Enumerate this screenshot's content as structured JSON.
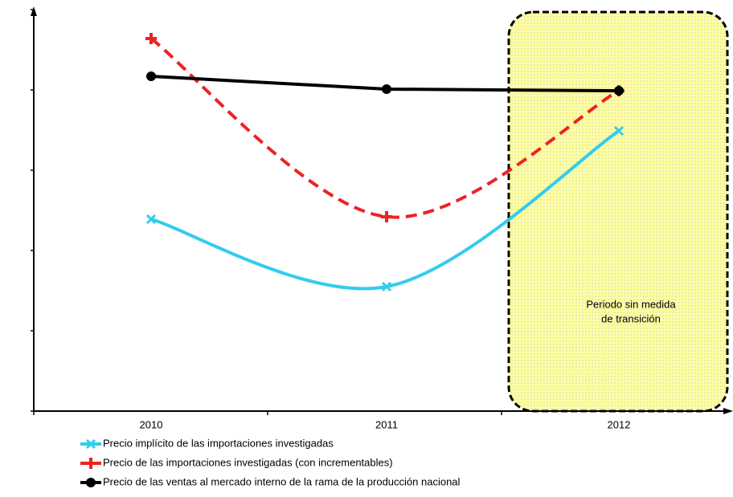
{
  "chart_data": {
    "type": "line",
    "categories": [
      "2010",
      "2011",
      "2012"
    ],
    "series": [
      {
        "name": "Precio implícito de las importaciones investigadas",
        "color": "#33ccee",
        "dash": false,
        "values": [
          47.8,
          31,
          69.8
        ]
      },
      {
        "name": "Precio de las importaciones investigadas (con incrementables)",
        "color": "#ee2222",
        "dash": true,
        "values": [
          92.8,
          48.4,
          79.8
        ]
      },
      {
        "name": "Precio de las ventas al mercado interno de la rama de la producción nacional",
        "color": "#000000",
        "dash": false,
        "values": [
          83.4,
          80.2,
          79.8
        ]
      }
    ],
    "annotation": [
      "Periodo sin medida",
      "de transición"
    ],
    "ylim": [
      0,
      100
    ],
    "yticks": [
      0,
      20,
      40,
      60,
      80,
      100
    ],
    "legend": "bottom"
  }
}
